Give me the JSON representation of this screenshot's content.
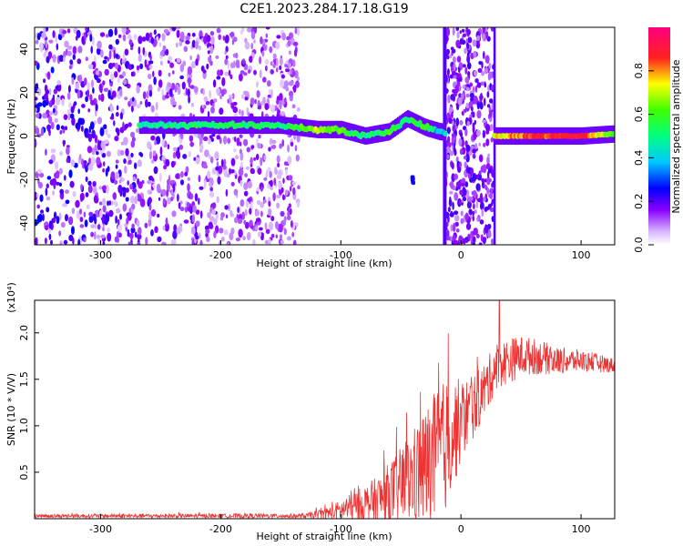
{
  "title": "C2E1.2023.284.17.18.G19",
  "chart_data": [
    {
      "type": "heatmap",
      "title": "C2E1.2023.284.17.18.G19",
      "xlabel": "Height of straight line (km)",
      "ylabel": "Frequency (Hz)",
      "xlim": [
        -355,
        128
      ],
      "ylim": [
        -50,
        50
      ],
      "xticks": [
        -300,
        -200,
        -100,
        0,
        100
      ],
      "yticks": [
        -40,
        -20,
        0,
        20,
        40
      ],
      "colorbar": {
        "label": "Normalized spectral amplitude",
        "range": [
          0,
          1
        ],
        "ticks": [
          "0.0",
          "0.2",
          "0.4",
          "0.6",
          "0.8"
        ],
        "colors": [
          "#ffffff",
          "#8a00ff",
          "#0000ff",
          "#00e5ff",
          "#00ff40",
          "#ffff00",
          "#ff2020",
          "#ff0080"
        ]
      },
      "ridge": {
        "description_points": [
          {
            "x": -268,
            "y": 5,
            "amp": 0.45
          },
          {
            "x": -200,
            "y": 5,
            "amp": 0.55
          },
          {
            "x": -150,
            "y": 5,
            "amp": 0.5
          },
          {
            "x": -120,
            "y": 3,
            "amp": 0.7
          },
          {
            "x": -100,
            "y": 3,
            "amp": 0.6
          },
          {
            "x": -80,
            "y": 0,
            "amp": 0.5
          },
          {
            "x": -60,
            "y": 2,
            "amp": 0.55
          },
          {
            "x": -45,
            "y": 8,
            "amp": 0.5
          },
          {
            "x": -30,
            "y": 4,
            "amp": 0.6
          },
          {
            "x": -18,
            "y": 2,
            "amp": 0.4
          },
          {
            "x": 30,
            "y": 0,
            "amp": 0.75
          },
          {
            "x": 60,
            "y": 0,
            "amp": 0.85
          },
          {
            "x": 100,
            "y": 0,
            "amp": 0.9
          },
          {
            "x": 128,
            "y": 1,
            "amp": 0.6
          }
        ]
      },
      "broadband_bands": [
        [
          -15,
          -12
        ],
        [
          27,
          29
        ]
      ],
      "noise_region_x": [
        -355,
        -135
      ],
      "noise_burst_x": [
        -13,
        27
      ]
    },
    {
      "type": "line",
      "xlabel": "Height of straight line (km)",
      "ylabel": "SNR (10 * V/V)",
      "y_multiplier": "(x10⁴)",
      "xlim": [
        -355,
        128
      ],
      "ylim": [
        0,
        23500
      ],
      "xticks": [
        -300,
        -200,
        -100,
        0,
        100
      ],
      "yticks": [
        5000,
        10000,
        15000,
        20000
      ],
      "ytick_labels": [
        "0.5",
        "1.0",
        "1.5",
        "2.0"
      ],
      "color": "#ee3333",
      "envelope": {
        "x": [
          -355,
          -130,
          -110,
          -90,
          -70,
          -60,
          -50,
          -40,
          -30,
          -20,
          -10,
          0,
          10,
          20,
          30,
          40,
          50,
          60,
          80,
          100,
          128
        ],
        "mean": [
          300,
          300,
          600,
          1200,
          2000,
          2800,
          3500,
          4500,
          5500,
          6500,
          8500,
          10500,
          12000,
          14000,
          16500,
          17000,
          17500,
          17500,
          17000,
          17000,
          16500
        ],
        "amp": [
          200,
          250,
          700,
          1600,
          2500,
          3200,
          4200,
          5200,
          6500,
          7500,
          7000,
          4500,
          3500,
          3000,
          2500,
          2500,
          2200,
          2000,
          1500,
          1200,
          800
        ]
      },
      "peak": {
        "x": 32,
        "y": 23500
      }
    }
  ]
}
